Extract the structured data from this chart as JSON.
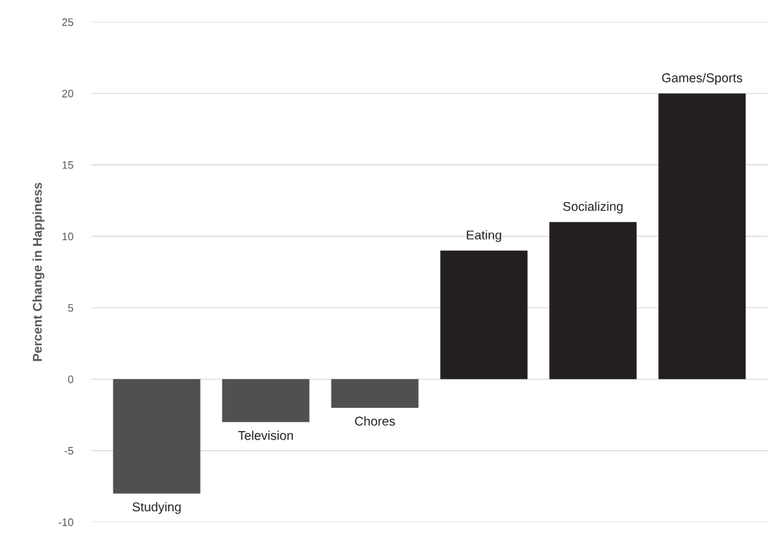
{
  "chart_data": {
    "type": "bar",
    "ylabel": "Percent Change in Happiness",
    "categories": [
      "Studying",
      "Television",
      "Chores",
      "Eating",
      "Socializing",
      "Games/Sports"
    ],
    "values": [
      -8,
      -3,
      -2,
      9,
      11,
      20
    ],
    "colors": [
      "#505050",
      "#505050",
      "#505050",
      "#231f20",
      "#231f20",
      "#231f20"
    ],
    "ylim": [
      -10,
      25
    ],
    "yticks": [
      -10,
      -5,
      0,
      5,
      10,
      15,
      20,
      25
    ],
    "grid": "y",
    "tick_labels": "y"
  }
}
